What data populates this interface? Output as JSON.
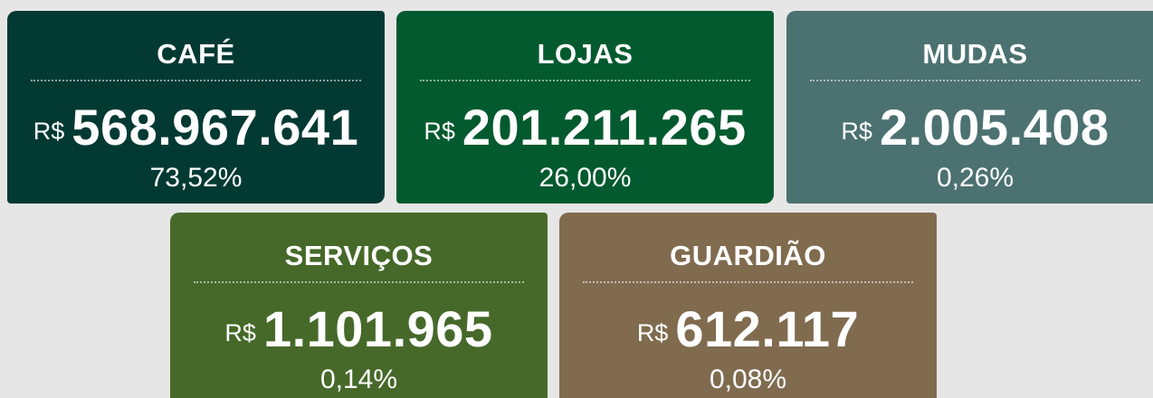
{
  "cards": [
    {
      "title": "CAFÉ",
      "currency": "R$",
      "amount": "568.967.641",
      "percent": "73,52%"
    },
    {
      "title": "LOJAS",
      "currency": "R$",
      "amount": "201.211.265",
      "percent": "26,00%"
    },
    {
      "title": "MUDAS",
      "currency": "R$",
      "amount": "2.005.408",
      "percent": "0,26%"
    },
    {
      "title": "SERVIÇOS",
      "currency": "R$",
      "amount": "1.101.965",
      "percent": "0,14%"
    },
    {
      "title": "GUARDIÃO",
      "currency": "R$",
      "amount": "612.117",
      "percent": "0,08%"
    }
  ]
}
